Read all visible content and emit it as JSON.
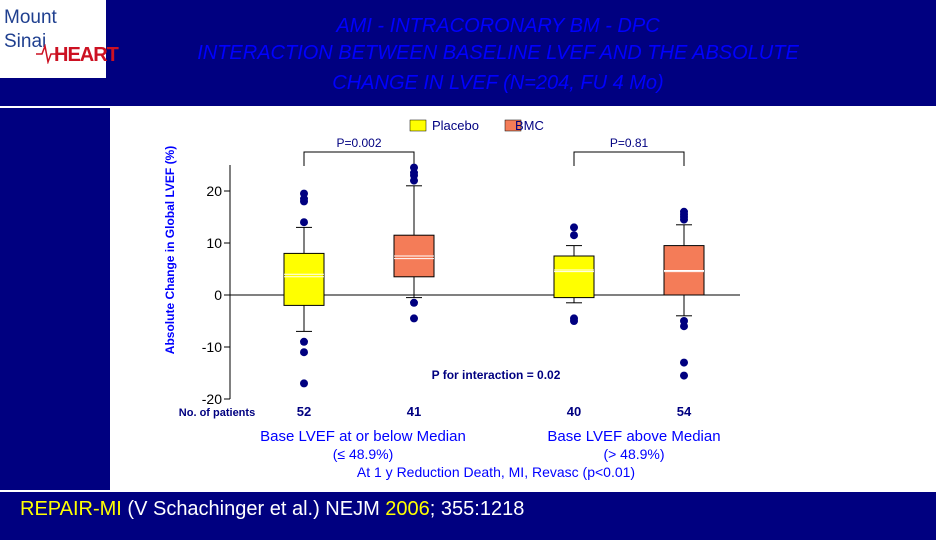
{
  "logo": {
    "line1": "Mount",
    "line2": "Sinai",
    "brand": "HEART"
  },
  "title": {
    "line1": "AMI - INTRACORONARY BM - DPC",
    "line2": "INTERACTION BETWEEN BASELINE LVEF AND THE ABSOLUTE",
    "line3": "CHANGE IN LVEF (N=204, FU 4 Mo)"
  },
  "colors": {
    "background": "#000080",
    "title": "#0000ff",
    "placebo": "#ffff00",
    "bmc": "#f47c58",
    "text": "#0000ff"
  },
  "chart_data": {
    "type": "box",
    "ylabel": "Absolute Change in Global LVEF (%)",
    "ylim": [
      -20,
      25
    ],
    "yticks": [
      20,
      10,
      0,
      -10,
      -20
    ],
    "legend": {
      "placement": "top",
      "entries": [
        "Placebo",
        "BMC"
      ]
    },
    "patients_label": "No. of patients",
    "groups": [
      {
        "label": "Base LVEF at or below Median",
        "sublabel": "(≤ 48.9%)",
        "p_value": "P=0.002"
      },
      {
        "label": "Base LVEF above Median",
        "sublabel": "(> 48.9%)",
        "p_value": "P=0.81"
      }
    ],
    "boxes": [
      {
        "series": "Placebo",
        "group": 0,
        "n": "52",
        "q1": -2,
        "median": 3.5,
        "mean": 4,
        "q3": 8,
        "whisker_low": -7,
        "whisker_high": 13,
        "outliers": [
          14,
          18,
          18.5,
          19.5,
          -9,
          -11,
          -17
        ]
      },
      {
        "series": "BMC",
        "group": 0,
        "n": "41",
        "q1": 3.5,
        "median": 7,
        "mean": 7.5,
        "q3": 11.5,
        "whisker_low": -0.5,
        "whisker_high": 21,
        "outliers": [
          22,
          23,
          23.5,
          24.5,
          -1.5,
          -4.5
        ]
      },
      {
        "series": "Placebo",
        "group": 1,
        "n": "40",
        "q1": -0.5,
        "median": 4.8,
        "mean": 4.5,
        "q3": 7.5,
        "whisker_low": -1.5,
        "whisker_high": 9.5,
        "outliers": [
          11.5,
          13,
          -4.5,
          -5
        ]
      },
      {
        "series": "BMC",
        "group": 1,
        "n": "54",
        "q1": 0,
        "median": 4.7,
        "mean": 4.5,
        "q3": 9.5,
        "whisker_low": -4,
        "whisker_high": 13.5,
        "outliers": [
          14.5,
          15,
          15.5,
          16,
          -5,
          -6,
          -13,
          -15.5
        ]
      }
    ],
    "interaction": "P for interaction = 0.02",
    "footnote": "At 1 y Reduction Death, MI, Revasc (p<0.01)"
  },
  "citation": {
    "part1": "REPAIR-MI",
    "part2": " (V Schachinger et al.) NEJM ",
    "part3": "2006",
    "part4": "; 355:1218"
  }
}
